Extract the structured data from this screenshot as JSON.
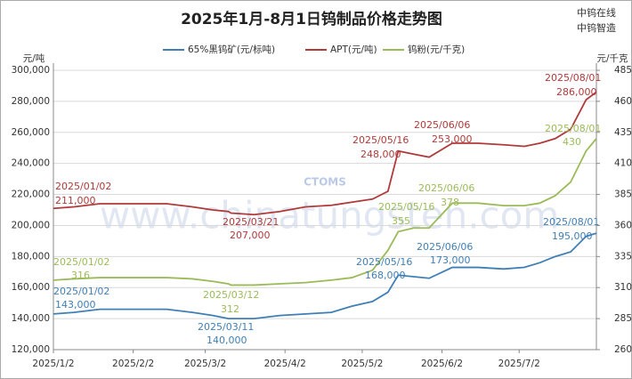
{
  "chart_data": {
    "type": "line",
    "title": "2025年1月-8月1日钨制品价格走势图",
    "brand_lines": [
      "中钨在线",
      "中钨智造"
    ],
    "watermark": "www.chinatungsten.com",
    "watermark_logo": "CTOMS",
    "y_unit": "元/吨",
    "y2_unit": "元/千克",
    "x": [
      "2025-01-02",
      "2025-01-10",
      "2025-01-20",
      "2025-02-05",
      "2025-02-15",
      "2025-02-25",
      "2025-03-05",
      "2025-03-11",
      "2025-03-12",
      "2025-03-21",
      "2025-03-31",
      "2025-04-10",
      "2025-04-20",
      "2025-04-28",
      "2025-05-06",
      "2025-05-12",
      "2025-05-16",
      "2025-05-22",
      "2025-05-28",
      "2025-06-06",
      "2025-06-16",
      "2025-06-26",
      "2025-07-04",
      "2025-07-10",
      "2025-07-16",
      "2025-07-22",
      "2025-07-28",
      "2025-08-01"
    ],
    "xlim": [
      "2025-01-02",
      "2025-08-01"
    ],
    "xticks": [
      {
        "value": "2025-01-02",
        "label": "2025/1/2"
      },
      {
        "value": "2025-02-02",
        "label": "2025/2/2"
      },
      {
        "value": "2025-03-02",
        "label": "2025/3/2"
      },
      {
        "value": "2025-04-02",
        "label": "2025/4/2"
      },
      {
        "value": "2025-05-02",
        "label": "2025/5/2"
      },
      {
        "value": "2025-06-02",
        "label": "2025/6/2"
      },
      {
        "value": "2025-07-02",
        "label": "2025/7/2"
      }
    ],
    "ylim": [
      120000,
      300000
    ],
    "yticks": [
      {
        "value": 120000,
        "label": "120,000"
      },
      {
        "value": 140000,
        "label": "140,000"
      },
      {
        "value": 160000,
        "label": "160,000"
      },
      {
        "value": 180000,
        "label": "180,000"
      },
      {
        "value": 200000,
        "label": "200,000"
      },
      {
        "value": 220000,
        "label": "220,000"
      },
      {
        "value": 240000,
        "label": "240,000"
      },
      {
        "value": 260000,
        "label": "260,000"
      },
      {
        "value": 280000,
        "label": "280,000"
      },
      {
        "value": 300000,
        "label": "300,000"
      }
    ],
    "y2lim": [
      260,
      485
    ],
    "y2ticks": [
      260,
      285,
      310,
      335,
      360,
      385,
      410,
      435,
      460,
      485
    ],
    "grid": true,
    "legend": "top",
    "series": [
      {
        "name": "65%黑钨矿(元/标吨)",
        "color": "#3f7fb5",
        "values": [
          143000,
          144000,
          146000,
          146000,
          146000,
          144000,
          142000,
          140000,
          140000,
          140000,
          142000,
          143000,
          144000,
          148000,
          151000,
          157000,
          168000,
          167000,
          166000,
          173000,
          173000,
          172000,
          173000,
          176000,
          180000,
          183000,
          193000,
          195000
        ],
        "value_labels": [
          "143,000",
          null,
          null,
          null,
          null,
          null,
          null,
          "140,000",
          null,
          null,
          null,
          null,
          null,
          null,
          null,
          null,
          "168,000",
          null,
          null,
          "173,000",
          null,
          null,
          null,
          null,
          null,
          null,
          null,
          "195,000"
        ],
        "annotations": [
          "2025/01/02",
          null,
          null,
          null,
          null,
          null,
          null,
          "2025/03/11",
          null,
          null,
          null,
          null,
          null,
          null,
          null,
          null,
          "2025/05/16",
          null,
          null,
          "2025/06/06",
          null,
          null,
          null,
          null,
          null,
          null,
          null,
          "2025/08/01"
        ]
      },
      {
        "name": "APT(元/吨)",
        "color": "#b03a3a",
        "values": [
          211000,
          212000,
          214000,
          214000,
          214000,
          212000,
          210000,
          209000,
          208000,
          207000,
          209000,
          212000,
          213000,
          215000,
          217000,
          222000,
          248000,
          246000,
          244000,
          253000,
          253000,
          252000,
          251000,
          253000,
          256000,
          262000,
          281000,
          286000
        ],
        "value_labels": [
          "211,000",
          null,
          null,
          null,
          null,
          null,
          null,
          null,
          null,
          "207,000",
          null,
          null,
          null,
          null,
          null,
          null,
          "248,000",
          null,
          null,
          "253,000",
          null,
          null,
          null,
          null,
          null,
          null,
          null,
          "286,000"
        ],
        "annotations": [
          "2025/01/02",
          null,
          null,
          null,
          null,
          null,
          null,
          null,
          null,
          "2025/03/21",
          null,
          null,
          null,
          null,
          null,
          null,
          "2025/05/16",
          null,
          null,
          "2025/06/06",
          null,
          null,
          null,
          null,
          null,
          null,
          null,
          "2025/08/01"
        ]
      },
      {
        "name": "钨粉(元/千克)",
        "color": "#9bbb59",
        "axis": "y2",
        "values": [
          316,
          317,
          318,
          318,
          318,
          317,
          315,
          313,
          312,
          312,
          313,
          314,
          316,
          318,
          324,
          340,
          355,
          358,
          358,
          378,
          378,
          376,
          376,
          378,
          384,
          395,
          420,
          430
        ],
        "value_labels": [
          null,
          null,
          null,
          null,
          null,
          null,
          null,
          null,
          null,
          null,
          null,
          null,
          null,
          null,
          null,
          null,
          null,
          null,
          null,
          null,
          null,
          null,
          null,
          null,
          null,
          null,
          null,
          null
        ],
        "annotations": [
          "2025/01/02",
          null,
          null,
          null,
          null,
          null,
          null,
          null,
          "2025/03/12",
          null,
          null,
          null,
          null,
          null,
          null,
          null,
          "2025/05/16",
          null,
          null,
          "2025/06/06",
          null,
          null,
          null,
          null,
          null,
          null,
          null,
          "2025/08/01"
        ]
      }
    ]
  }
}
